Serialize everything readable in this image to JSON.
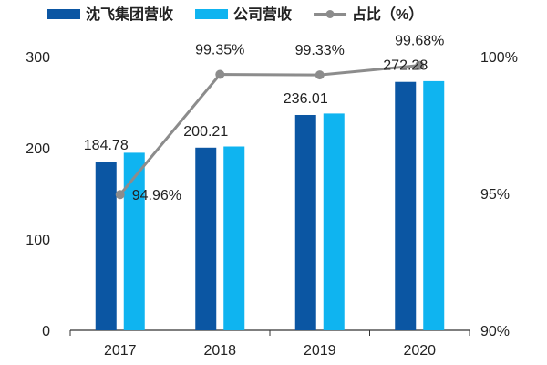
{
  "chart_data": {
    "type": "bar",
    "categories": [
      "2017",
      "2018",
      "2019",
      "2020"
    ],
    "series": [
      {
        "name": "沈飞集团营收",
        "type": "bar",
        "axis": "left",
        "color": "#0b56a3",
        "values": [
          184.78,
          200.21,
          236.01,
          272.28
        ],
        "labels": [
          "184.78",
          "200.21",
          "236.01",
          "272.28"
        ]
      },
      {
        "name": "公司营收",
        "type": "bar",
        "axis": "left",
        "color": "#0fb4f0",
        "values": [
          194.6,
          201.5,
          237.6,
          273.1
        ]
      },
      {
        "name": "占比（%）",
        "type": "line",
        "axis": "right",
        "color": "#8c8c8c",
        "values": [
          94.96,
          99.35,
          99.33,
          99.68
        ],
        "labels": [
          "94.96%",
          "99.35%",
          "99.33%",
          "99.68%"
        ]
      }
    ],
    "y_left": {
      "ylim": [
        0,
        300
      ],
      "ticks": [
        "0",
        "100",
        "200",
        "300"
      ]
    },
    "y_right": {
      "ylim": [
        90,
        100
      ],
      "ticks": [
        "90%",
        "95%",
        "100%"
      ]
    },
    "legend_position": "top",
    "grid": false
  }
}
